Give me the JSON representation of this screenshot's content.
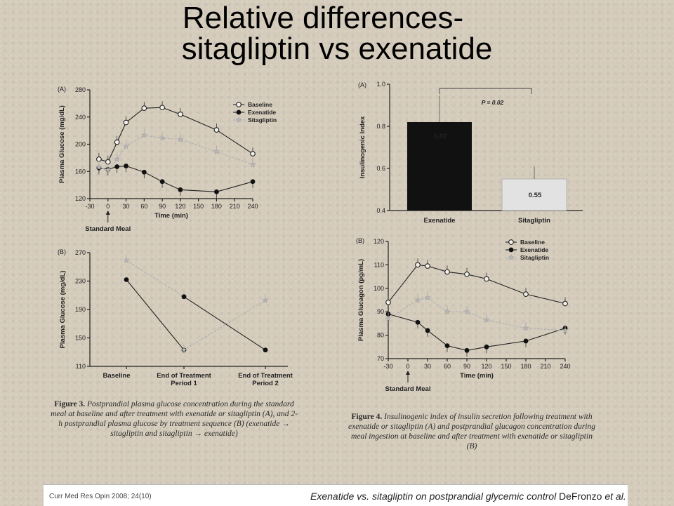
{
  "slide": {
    "title_line1": "Relative differences-",
    "title_line2": "sitagliptin   vs exenatide"
  },
  "figure3": {
    "caption_label": "Figure 3.",
    "caption_text": "Postprandial plasma glucose concentration during the standard meal at baseline and after treatment with exenatide or sitagliptin (A), and 2-h postprandial plasma glucose by treatment sequence (B) (exenatide → sitagliptin and sitagliptin → exenatide)"
  },
  "figure4": {
    "caption_label": "Figure 4.",
    "caption_text": "Insulinogenic index of insulin secretion following treatment with exenatide or sitagliptin (A) and postprandial glucagon concentration during meal ingestion at baseline and after treatment with exenatide or sitagliptin (B)"
  },
  "footer": {
    "journal": "Curr Med Res Opin 2008; 24(10)",
    "article": "Exenatide vs. sitagliptin on postprandial glycemic control",
    "authors": "DeFronzo",
    "et_al": "et al."
  },
  "chart_data": [
    {
      "id": "fig3A",
      "type": "line",
      "panel_label": "(A)",
      "xlabel": "Time (min)",
      "ylabel": "Plasma Glucose (mg/dL)",
      "x_ticks": [
        -30,
        0,
        30,
        60,
        90,
        120,
        150,
        180,
        210,
        240
      ],
      "y_ticks": [
        120,
        160,
        200,
        240,
        280
      ],
      "xlim": [
        -30,
        240
      ],
      "ylim": [
        120,
        280
      ],
      "annotation": "Standard Meal",
      "annotation_x": 0,
      "legend": "top-right",
      "series": [
        {
          "name": "Baseline",
          "marker": "open-circle",
          "x": [
            -15,
            0,
            15,
            30,
            60,
            90,
            120,
            180,
            240
          ],
          "y": [
            178,
            174,
            203,
            232,
            253,
            254,
            244,
            221,
            186
          ]
        },
        {
          "name": "Exenatide",
          "marker": "filled-circle",
          "x": [
            -15,
            0,
            15,
            30,
            60,
            90,
            120,
            180,
            240
          ],
          "y": [
            165,
            163,
            167,
            168,
            159,
            145,
            133,
            130,
            145
          ]
        },
        {
          "name": "Sitagliptin",
          "marker": "star",
          "x": [
            -15,
            0,
            15,
            30,
            60,
            90,
            120,
            180,
            240
          ],
          "y": [
            166,
            162,
            178,
            197,
            213,
            209,
            207,
            189,
            170
          ]
        }
      ]
    },
    {
      "id": "fig3B",
      "type": "line",
      "panel_label": "(B)",
      "xlabel": "",
      "ylabel": "Plasma Glucose (mg/dL)",
      "categories": [
        "Baseline",
        "End of Treatment Period 1",
        "End of Treatment Period 2"
      ],
      "category_lines": [
        [
          "Baseline"
        ],
        [
          "End of Treatment",
          "Period 1"
        ],
        [
          "End of Treatment",
          "Period 2"
        ]
      ],
      "y_ticks": [
        110,
        150,
        190,
        230,
        270
      ],
      "ylim": [
        110,
        270
      ],
      "series": [
        {
          "name": "exenatide → sitagliptin",
          "marker": "filled-circle",
          "x": [
            0,
            1
          ],
          "y": [
            232,
            133
          ]
        },
        {
          "name": "exenatide → sitagliptin",
          "marker": "star",
          "x": [
            1,
            2
          ],
          "y": [
            133,
            203
          ]
        },
        {
          "name": "sitagliptin → exenatide",
          "marker": "star",
          "x": [
            0,
            1
          ],
          "y": [
            259,
            208
          ]
        },
        {
          "name": "sitagliptin → exenatide",
          "marker": "filled-circle",
          "x": [
            1,
            2
          ],
          "y": [
            208,
            133
          ]
        }
      ]
    },
    {
      "id": "fig4A",
      "type": "bar",
      "panel_label": "(A)",
      "ylabel": "Insulinogenic Index",
      "categories": [
        "Exenatide",
        "Sitagliptin"
      ],
      "values": [
        0.82,
        0.55
      ],
      "value_labels": [
        "0.82",
        "0.55"
      ],
      "y_ticks": [
        0.4,
        0.6,
        0.8,
        1.0
      ],
      "y_tick_labels": [
        "0.4",
        "0.6",
        "0.8",
        "1.0"
      ],
      "ylim": [
        0.4,
        1.0
      ],
      "significance": "P = 0.02",
      "colors": [
        "#111111",
        "#e2e2e2"
      ]
    },
    {
      "id": "fig4B",
      "type": "line",
      "panel_label": "(B)",
      "xlabel": "Time (min)",
      "ylabel": "Plasma Glucagon (pg/mL)",
      "x_ticks": [
        -30,
        0,
        30,
        60,
        90,
        120,
        150,
        180,
        210,
        240
      ],
      "y_ticks": [
        70,
        80,
        90,
        100,
        110,
        120
      ],
      "xlim": [
        -30,
        240
      ],
      "ylim": [
        70,
        120
      ],
      "annotation": "Standard Meal",
      "annotation_x": 0,
      "legend": "top-right",
      "series": [
        {
          "name": "Baseline",
          "marker": "open-circle",
          "x": [
            -30,
            15,
            30,
            60,
            90,
            120,
            180,
            240
          ],
          "y": [
            94,
            110,
            109.5,
            107,
            106,
            104,
            97.5,
            93.5
          ]
        },
        {
          "name": "Exenatide",
          "marker": "filled-circle",
          "x": [
            -30,
            15,
            30,
            60,
            90,
            120,
            180,
            240
          ],
          "y": [
            89,
            85.5,
            82,
            75.5,
            73.5,
            75,
            77.5,
            83
          ]
        },
        {
          "name": "Sitagliptin",
          "marker": "star",
          "x": [
            -30,
            15,
            30,
            60,
            90,
            120,
            180,
            240
          ],
          "y": [
            87,
            95,
            96,
            90,
            90,
            86.5,
            83,
            82
          ]
        }
      ]
    }
  ]
}
